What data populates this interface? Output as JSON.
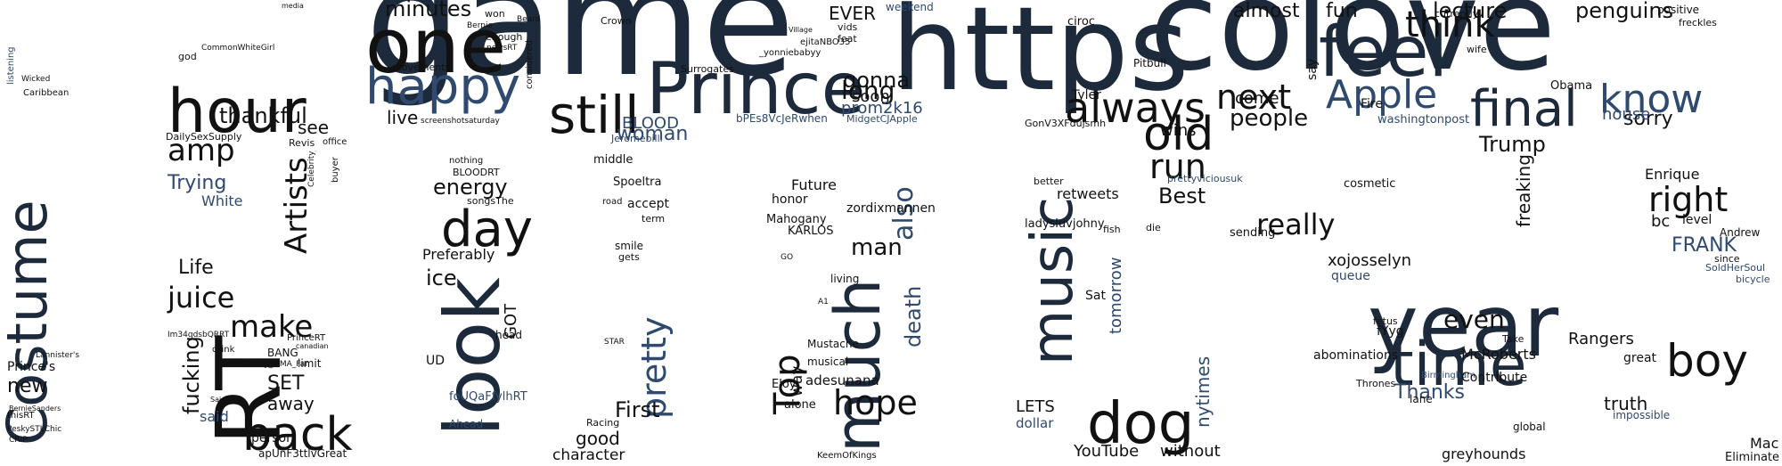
{
  "word_cloud": {
    "words": [
      {
        "text": "game",
        "color": "dark"
      },
      {
        "text": "colove",
        "color": "dark"
      },
      {
        "text": "https",
        "color": "dark"
      },
      {
        "text": "one",
        "color": "black"
      },
      {
        "text": "Prince",
        "color": "dark"
      },
      {
        "text": "happy",
        "color": "blue"
      },
      {
        "text": "hour",
        "color": "black"
      },
      {
        "text": "feel",
        "color": "dark"
      },
      {
        "text": "Costume",
        "color": "dark"
      },
      {
        "text": "RT",
        "color": "black"
      },
      {
        "text": "back",
        "color": "black"
      },
      {
        "text": "look",
        "color": "dark"
      },
      {
        "text": "music",
        "color": "dark"
      },
      {
        "text": "much",
        "color": "dark"
      },
      {
        "text": "year",
        "color": "dark"
      },
      {
        "text": "time",
        "color": "dark"
      },
      {
        "text": "dog",
        "color": "black"
      },
      {
        "text": "Apple",
        "color": "blue"
      },
      {
        "text": "final",
        "color": "dark"
      },
      {
        "text": "know",
        "color": "blue"
      },
      {
        "text": "always",
        "color": "black"
      },
      {
        "text": "old",
        "color": "black"
      },
      {
        "text": "still",
        "color": "black"
      },
      {
        "text": "day",
        "color": "black"
      },
      {
        "text": "boy",
        "color": "black"
      },
      {
        "text": "think",
        "color": "black"
      },
      {
        "text": "next",
        "color": "black"
      },
      {
        "text": "run",
        "color": "black"
      },
      {
        "text": "Top",
        "color": "black"
      },
      {
        "text": "hope",
        "color": "black"
      },
      {
        "text": "pretty",
        "color": "blue"
      },
      {
        "text": "Artists",
        "color": "black"
      },
      {
        "text": "make",
        "color": "black"
      },
      {
        "text": "juice",
        "color": "black"
      },
      {
        "text": "amp",
        "color": "black"
      },
      {
        "text": "thankful",
        "color": "black"
      },
      {
        "text": "Trying",
        "color": "blue"
      },
      {
        "text": "Life",
        "color": "black"
      },
      {
        "text": "fucking",
        "color": "black"
      },
      {
        "text": "away",
        "color": "black"
      },
      {
        "text": "new",
        "color": "black"
      },
      {
        "text": "Prince's",
        "color": "black"
      },
      {
        "text": "minutes",
        "color": "black"
      },
      {
        "text": "movements",
        "color": "black"
      },
      {
        "text": "considered",
        "color": "black"
      },
      {
        "text": "EVER",
        "color": "black"
      },
      {
        "text": "long",
        "color": "black"
      },
      {
        "text": "gonna",
        "color": "black"
      },
      {
        "text": "soon",
        "color": "black"
      },
      {
        "text": "woman",
        "color": "blue"
      },
      {
        "text": "BLOOD",
        "color": "blue"
      },
      {
        "text": "prom2k16",
        "color": "blue"
      },
      {
        "text": "weekend",
        "color": "blue"
      },
      {
        "text": "energy",
        "color": "black"
      },
      {
        "text": "also",
        "color": "blue"
      },
      {
        "text": "death",
        "color": "blue"
      },
      {
        "text": "man",
        "color": "black"
      },
      {
        "text": "Future",
        "color": "black"
      },
      {
        "text": "honor",
        "color": "black"
      },
      {
        "text": "First",
        "color": "black"
      },
      {
        "text": "good",
        "color": "black"
      },
      {
        "text": "character",
        "color": "black"
      },
      {
        "text": "ice",
        "color": "black"
      },
      {
        "text": "GOT",
        "color": "black"
      },
      {
        "text": "Preferably",
        "color": "black"
      },
      {
        "text": "accept",
        "color": "black"
      },
      {
        "text": "Spoeltra",
        "color": "black"
      },
      {
        "text": "middle",
        "color": "black"
      },
      {
        "text": "way",
        "color": "black"
      },
      {
        "text": "adesunana",
        "color": "black"
      },
      {
        "text": "musical",
        "color": "black"
      },
      {
        "text": "Mustache",
        "color": "black"
      },
      {
        "text": "almost",
        "color": "black"
      },
      {
        "text": "fun",
        "color": "black"
      },
      {
        "text": "lecture",
        "color": "black"
      },
      {
        "text": "penguins",
        "color": "black"
      },
      {
        "text": "sorry",
        "color": "black"
      },
      {
        "text": "house",
        "color": "blue"
      },
      {
        "text": "Trump",
        "color": "black"
      },
      {
        "text": "people",
        "color": "black"
      },
      {
        "text": "wins",
        "color": "black"
      },
      {
        "text": "come",
        "color": "black"
      },
      {
        "text": "Best",
        "color": "black"
      },
      {
        "text": "really",
        "color": "black"
      },
      {
        "text": "freaking",
        "color": "black"
      },
      {
        "text": "right",
        "color": "black"
      },
      {
        "text": "Enrique",
        "color": "black"
      },
      {
        "text": "FRANK",
        "color": "blue"
      },
      {
        "text": "bc",
        "color": "black"
      },
      {
        "text": "level",
        "color": "black"
      },
      {
        "text": "even",
        "color": "black"
      },
      {
        "text": "Rangers",
        "color": "black"
      },
      {
        "text": "truth",
        "color": "black"
      },
      {
        "text": "Thanks",
        "color": "blue"
      },
      {
        "text": "retweets",
        "color": "black"
      },
      {
        "text": "tomorrow",
        "color": "blue"
      },
      {
        "text": "nytimes",
        "color": "blue"
      },
      {
        "text": "LETS",
        "color": "black"
      },
      {
        "text": "dollar",
        "color": "blue"
      },
      {
        "text": "YouTube",
        "color": "black"
      },
      {
        "text": "without",
        "color": "black"
      },
      {
        "text": "greyhounds",
        "color": "black"
      },
      {
        "text": "Mac",
        "color": "black"
      },
      {
        "text": "Eliminate",
        "color": "black"
      },
      {
        "text": "abominations",
        "color": "black"
      },
      {
        "text": "McRoberts",
        "color": "black"
      },
      {
        "text": "xojosselyn",
        "color": "black"
      },
      {
        "text": "queue",
        "color": "blue"
      },
      {
        "text": "see",
        "color": "black"
      },
      {
        "text": "SET",
        "color": "black"
      },
      {
        "text": "said",
        "color": "blue"
      },
      {
        "text": "White",
        "color": "blue"
      },
      {
        "text": "live",
        "color": "black"
      },
      {
        "text": "thisRT",
        "color": "black"
      },
      {
        "text": "apUnF3ttlvGreat",
        "color": "black"
      },
      {
        "text": "KeemOfKings",
        "color": "black"
      },
      {
        "text": "screenshotsaturday",
        "color": "black"
      },
      {
        "text": "bPEs8VcJeRwhen",
        "color": "blue"
      },
      {
        "text": "Crown",
        "color": "black"
      },
      {
        "text": "Surrogates",
        "color": "black"
      },
      {
        "text": "BLOODRT",
        "color": "black"
      },
      {
        "text": "nothing",
        "color": "black"
      },
      {
        "text": "living",
        "color": "black"
      },
      {
        "text": "alone",
        "color": "black"
      },
      {
        "text": "Eloy",
        "color": "black"
      },
      {
        "text": "Racing",
        "color": "black"
      },
      {
        "text": "Ahead",
        "color": "blue"
      },
      {
        "text": "foUQaFfylhRT",
        "color": "blue"
      },
      {
        "text": "songsThe",
        "color": "black"
      },
      {
        "text": "Jeromebilll",
        "color": "blue"
      },
      {
        "text": "fYyg",
        "color": "black"
      },
      {
        "text": "fetus",
        "color": "black"
      },
      {
        "text": "Birmingham",
        "color": "blue"
      },
      {
        "text": "impossible",
        "color": "blue"
      },
      {
        "text": "global",
        "color": "black"
      },
      {
        "text": "washingtonpost",
        "color": "blue"
      },
      {
        "text": "Obama",
        "color": "black"
      },
      {
        "text": "Tyler",
        "color": "black"
      },
      {
        "text": "ciroc",
        "color": "black"
      },
      {
        "text": "Pitbull",
        "color": "black"
      },
      {
        "text": "prettyviciousuk",
        "color": "blue"
      },
      {
        "text": "GonV3XFdujsmh",
        "color": "black"
      },
      {
        "text": "ladysluvjohny",
        "color": "black"
      },
      {
        "text": "Sat",
        "color": "black"
      },
      {
        "text": "better",
        "color": "black"
      },
      {
        "text": "die",
        "color": "black"
      },
      {
        "text": "fish",
        "color": "black"
      },
      {
        "text": "cosmetic",
        "color": "black"
      },
      {
        "text": "sending",
        "color": "black"
      },
      {
        "text": "Fire",
        "color": "black"
      },
      {
        "text": "say",
        "color": "black"
      },
      {
        "text": "Andrew",
        "color": "black"
      },
      {
        "text": "SoldHerSoul",
        "color": "blue"
      },
      {
        "text": "bicycle",
        "color": "blue"
      },
      {
        "text": "since",
        "color": "black"
      },
      {
        "text": "DailySexSupply",
        "color": "black"
      },
      {
        "text": "Revis",
        "color": "black"
      },
      {
        "text": "Im34qdsbQRRT",
        "color": "black"
      },
      {
        "text": "Crazy_MMA_Fan",
        "color": "black"
      },
      {
        "text": "limit",
        "color": "black"
      },
      {
        "text": "BANG",
        "color": "black"
      },
      {
        "text": "PrinceRT",
        "color": "black"
      },
      {
        "text": "drink",
        "color": "black"
      },
      {
        "text": "person",
        "color": "black"
      },
      {
        "text": "CommonWhiteGirl",
        "color": "black"
      },
      {
        "text": "UD",
        "color": "black"
      },
      {
        "text": "head",
        "color": "black"
      },
      {
        "text": "term",
        "color": "black"
      },
      {
        "text": "smile",
        "color": "black"
      },
      {
        "text": "gets",
        "color": "black"
      },
      {
        "text": "road",
        "color": "black"
      },
      {
        "text": "KARLOS",
        "color": "black"
      },
      {
        "text": "Mahogany",
        "color": "black"
      },
      {
        "text": "zordixmannen",
        "color": "black"
      },
      {
        "text": "Contribute",
        "color": "black"
      },
      {
        "text": "Take",
        "color": "black"
      },
      {
        "text": "great",
        "color": "black"
      },
      {
        "text": "Thrones",
        "color": "black"
      },
      {
        "text": "lane",
        "color": "black"
      },
      {
        "text": "currently",
        "color": "black"
      },
      {
        "text": "wife",
        "color": "black"
      },
      {
        "text": "positive",
        "color": "black"
      },
      {
        "text": "freckles",
        "color": "black"
      },
      {
        "text": "feat",
        "color": "black"
      },
      {
        "text": "vids",
        "color": "black"
      },
      {
        "text": "won",
        "color": "black"
      },
      {
        "text": "enough",
        "color": "black"
      },
      {
        "text": "newsRT",
        "color": "black"
      },
      {
        "text": "god",
        "color": "black"
      },
      {
        "text": "Celebrity",
        "color": "black"
      },
      {
        "text": "office",
        "color": "black"
      },
      {
        "text": "buyer",
        "color": "black"
      },
      {
        "text": "canadian",
        "color": "black"
      },
      {
        "text": "Wicked",
        "color": "black"
      },
      {
        "text": "listening",
        "color": "blue"
      },
      {
        "text": "Caribbean",
        "color": "black"
      },
      {
        "text": "media",
        "color": "black"
      },
      {
        "text": "Bernie",
        "color": "black"
      },
      {
        "text": "Beard",
        "color": "black"
      },
      {
        "text": "Village",
        "color": "black"
      },
      {
        "text": "ejitaNBO35",
        "color": "black"
      },
      {
        "text": "_yonniebabyy",
        "color": "black"
      },
      {
        "text": "MidgetCJApple",
        "color": "blue"
      },
      {
        "text": "STAR",
        "color": "black"
      },
      {
        "text": "GO",
        "color": "black"
      },
      {
        "text": "A1",
        "color": "black"
      },
      {
        "text": "CRIP",
        "color": "black"
      },
      {
        "text": "PeskySTLChic",
        "color": "black"
      },
      {
        "text": "BernieSanders",
        "color": "black"
      },
      {
        "text": "Lannister's",
        "color": "black"
      },
      {
        "text": "Said",
        "color": "black"
      }
    ]
  }
}
